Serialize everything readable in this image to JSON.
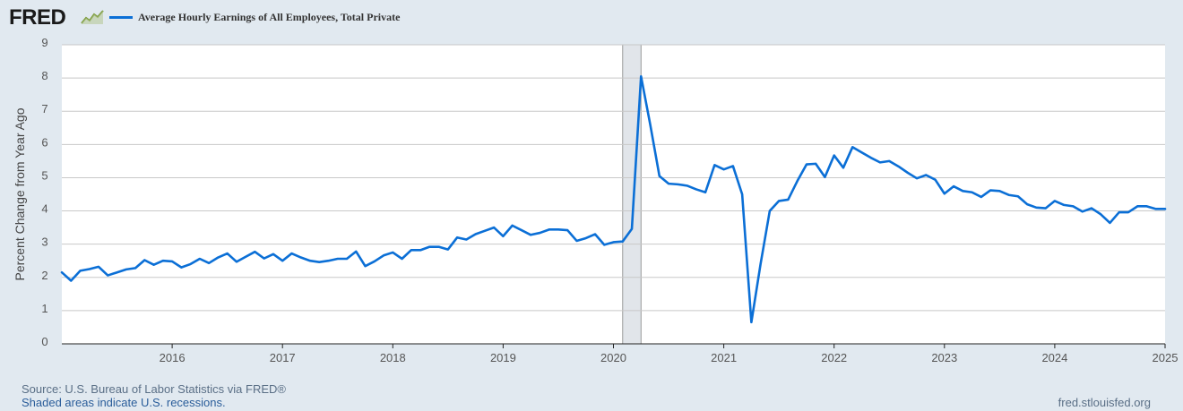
{
  "brand": {
    "logo_text": "FRED",
    "logo_icon": "fred-line-graph-icon"
  },
  "chart_data": {
    "type": "line",
    "title": "Average Hourly Earnings of All Employees, Total Private",
    "ylabel": "Percent Change from Year Ago",
    "xlabel": "",
    "ylim": [
      0,
      9
    ],
    "y_ticks": [
      "0",
      "1",
      "2",
      "3",
      "4",
      "5",
      "6",
      "7",
      "8",
      "9"
    ],
    "x_ticks": [
      "2016",
      "2017",
      "2018",
      "2019",
      "2020",
      "2021",
      "2022",
      "2023",
      "2024",
      "2025"
    ],
    "x_range": [
      "2015-01",
      "2025-01"
    ],
    "grid": true,
    "legend_position": "top-left",
    "recessions": [
      {
        "start": "2020-02",
        "end": "2020-04"
      }
    ],
    "series": [
      {
        "name": "Average Hourly Earnings of All Employees, Total Private",
        "color": "#0b6fd6",
        "start": "2015-01",
        "frequency": "monthly",
        "values": [
          2.15,
          1.9,
          2.2,
          2.25,
          2.32,
          2.06,
          2.15,
          2.24,
          2.28,
          2.52,
          2.38,
          2.5,
          2.48,
          2.3,
          2.4,
          2.56,
          2.43,
          2.6,
          2.72,
          2.47,
          2.62,
          2.77,
          2.57,
          2.7,
          2.5,
          2.72,
          2.6,
          2.5,
          2.46,
          2.5,
          2.56,
          2.56,
          2.78,
          2.34,
          2.48,
          2.66,
          2.75,
          2.56,
          2.82,
          2.82,
          2.92,
          2.92,
          2.84,
          3.2,
          3.14,
          3.3,
          3.4,
          3.5,
          3.24,
          3.56,
          3.42,
          3.28,
          3.34,
          3.44,
          3.44,
          3.42,
          3.1,
          3.18,
          3.3,
          2.98,
          3.06,
          3.08,
          3.46,
          8.05,
          6.6,
          5.05,
          4.82,
          4.8,
          4.76,
          4.65,
          4.56,
          5.38,
          5.25,
          5.35,
          4.5,
          0.65,
          2.4,
          4.0,
          4.3,
          4.34,
          4.9,
          5.4,
          5.42,
          5.02,
          5.67,
          5.3,
          5.92,
          5.76,
          5.6,
          5.46,
          5.5,
          5.34,
          5.15,
          4.98,
          5.08,
          4.94,
          4.52,
          4.74,
          4.6,
          4.56,
          4.42,
          4.62,
          4.6,
          4.48,
          4.44,
          4.2,
          4.1,
          4.08,
          4.3,
          4.18,
          4.14,
          3.98,
          4.08,
          3.9,
          3.64,
          3.96,
          3.96,
          4.14,
          4.14,
          4.06,
          4.06
        ]
      }
    ]
  },
  "footer": {
    "source": "Source: U.S. Bureau of Labor Statistics via FRED®",
    "recession_note": "Shaded areas indicate U.S. recessions.",
    "url": "fred.stlouisfed.org"
  }
}
